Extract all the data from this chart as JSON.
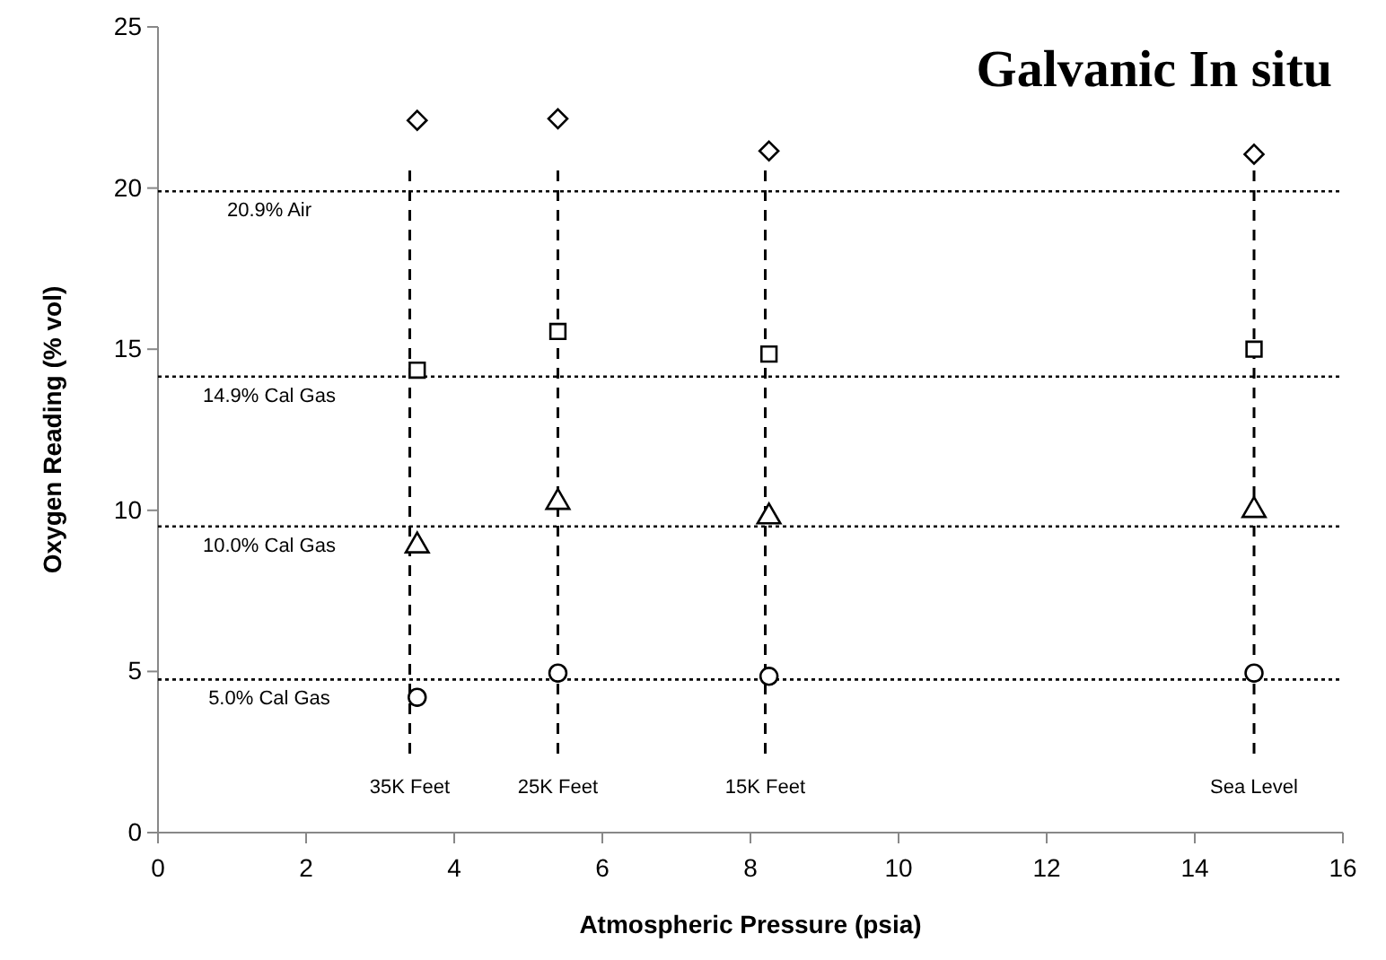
{
  "chart_data": {
    "type": "scatter",
    "title": "Galvanic In situ",
    "xlabel": "Atmospheric Pressure (psia)",
    "ylabel": "Oxygen Reading (% vol)",
    "xlim": [
      0,
      16
    ],
    "xticks": [
      0,
      2,
      4,
      6,
      8,
      10,
      12,
      14,
      16
    ],
    "ylim": [
      0,
      25
    ],
    "yticks": [
      0,
      5,
      10,
      15,
      20,
      25
    ],
    "grid": false,
    "series": [
      {
        "color": "#000000",
        "marker": "diamond",
        "x": [
          3.5,
          5.4,
          8.25,
          14.8
        ],
        "values": [
          22.1,
          22.15,
          21.15,
          21.05
        ]
      },
      {
        "color": "#000000",
        "marker": "square",
        "x": [
          3.5,
          5.4,
          8.25,
          14.8
        ],
        "values": [
          14.35,
          15.55,
          14.85,
          15.0
        ]
      },
      {
        "color": "#000000",
        "marker": "triangle",
        "x": [
          3.5,
          5.4,
          8.25,
          14.8
        ],
        "values": [
          8.9,
          10.25,
          9.8,
          10.0
        ]
      },
      {
        "color": "#000000",
        "marker": "circle",
        "x": [
          3.5,
          5.4,
          8.25,
          14.8
        ],
        "values": [
          4.2,
          4.95,
          4.85,
          4.95
        ]
      }
    ],
    "ref_lines": [
      {
        "axis": "y",
        "value": 19.9,
        "label": "20.9% Air",
        "line_style": "dotted",
        "color": "#000000"
      },
      {
        "axis": "y",
        "value": 14.15,
        "label": "14.9% Cal Gas",
        "line_style": "dotted",
        "color": "#000000"
      },
      {
        "axis": "y",
        "value": 9.5,
        "label": "10.0% Cal Gas",
        "line_style": "dotted",
        "color": "#000000"
      },
      {
        "axis": "y",
        "value": 4.75,
        "label": "5.0% Cal Gas",
        "line_style": "dotted",
        "color": "#000000"
      },
      {
        "axis": "x",
        "value": 3.4,
        "label": "35K Feet",
        "line_style": "dashed",
        "color": "#000000"
      },
      {
        "axis": "x",
        "value": 5.4,
        "label": "25K Feet",
        "line_style": "dashed",
        "color": "#000000"
      },
      {
        "axis": "x",
        "value": 8.2,
        "label": "15K Feet",
        "line_style": "dashed",
        "color": "#000000"
      },
      {
        "axis": "x",
        "value": 14.8,
        "label": "Sea Level",
        "line_style": "dashed",
        "color": "#000000"
      }
    ]
  }
}
